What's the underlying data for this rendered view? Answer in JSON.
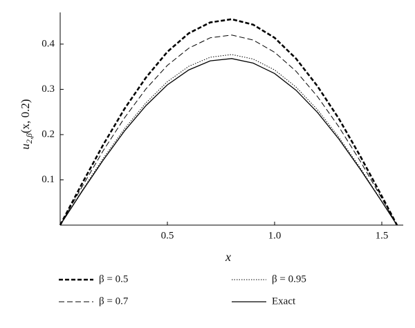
{
  "chart_data": {
    "type": "line",
    "x_label": "x",
    "y_label": {
      "main": "u",
      "sub": "2,β",
      "rest": "(x, 0.2)"
    },
    "x": [
      0,
      0.1,
      0.2,
      0.3,
      0.4,
      0.5,
      0.6,
      0.7,
      0.8,
      0.9,
      1.0,
      1.1,
      1.2,
      1.3,
      1.4,
      1.5,
      1.5708
    ],
    "series": [
      {
        "name": "β = 0.5",
        "color": "#000000",
        "dash": "6,3",
        "width": 2.6,
        "values": [
          0,
          0.09,
          0.177,
          0.257,
          0.326,
          0.383,
          0.424,
          0.448,
          0.455,
          0.443,
          0.414,
          0.368,
          0.307,
          0.235,
          0.152,
          0.064,
          0
        ]
      },
      {
        "name": "β = 0.7",
        "color": "#000000",
        "dash": "8,4",
        "width": 1,
        "values": [
          0,
          0.083,
          0.164,
          0.237,
          0.301,
          0.353,
          0.391,
          0.414,
          0.42,
          0.409,
          0.382,
          0.34,
          0.284,
          0.217,
          0.141,
          0.059,
          0
        ]
      },
      {
        "name": "β = 0.95",
        "color": "#000000",
        "dash": "1.5,2",
        "width": 1,
        "values": [
          0,
          0.075,
          0.147,
          0.213,
          0.27,
          0.317,
          0.351,
          0.371,
          0.377,
          0.367,
          0.343,
          0.305,
          0.255,
          0.194,
          0.126,
          0.053,
          0
        ]
      },
      {
        "name": "Exact",
        "color": "#000000",
        "dash": "none",
        "width": 1.3,
        "values": [
          0,
          0.073,
          0.143,
          0.208,
          0.264,
          0.31,
          0.343,
          0.363,
          0.368,
          0.358,
          0.335,
          0.298,
          0.249,
          0.19,
          0.123,
          0.052,
          0
        ]
      }
    ],
    "xlim": [
      0,
      1.6
    ],
    "ylim": [
      0,
      0.47
    ],
    "xticks": [
      {
        "value": 0.5,
        "label": "0.5"
      },
      {
        "value": 1.0,
        "label": "1.0"
      },
      {
        "value": 1.5,
        "label": "1.5"
      }
    ],
    "yticks": [
      0.1,
      0.2,
      0.3,
      0.4
    ],
    "grid": false,
    "legend": "bottom"
  }
}
